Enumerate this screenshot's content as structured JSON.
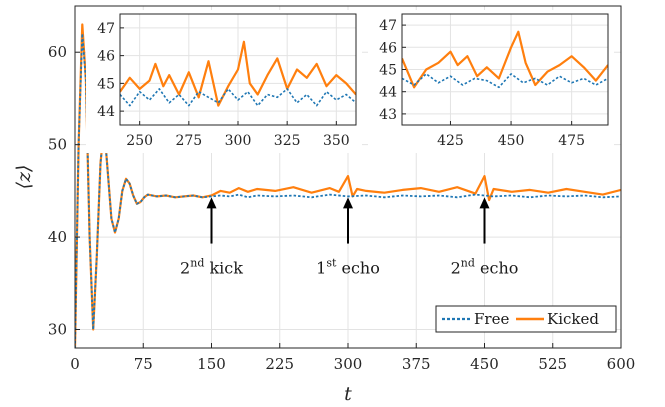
{
  "chart_data": {
    "type": "line",
    "title": "",
    "xlabel": "t",
    "ylabel": "⟨z⟩",
    "xlim": [
      0,
      600
    ],
    "ylim": [
      28,
      65
    ],
    "xticks": [
      0,
      75,
      150,
      225,
      300,
      375,
      450,
      525,
      600
    ],
    "yticks": [
      30,
      40,
      50,
      60
    ],
    "grid": true,
    "legend_position": "bottom-right",
    "series": [
      {
        "name": "Free",
        "color": "#1f77b4",
        "style": "dotted",
        "x": [
          0,
          4,
          8,
          12,
          16,
          20,
          24,
          28,
          32,
          36,
          40,
          44,
          48,
          52,
          56,
          60,
          64,
          68,
          72,
          76,
          80,
          90,
          100,
          110,
          120,
          130,
          140,
          150,
          160,
          170,
          180,
          190,
          200,
          220,
          240,
          260,
          280,
          300,
          320,
          340,
          360,
          380,
          400,
          420,
          440,
          460,
          480,
          500,
          520,
          540,
          560,
          580,
          600
        ],
        "y": [
          28,
          50,
          62,
          57,
          40,
          30,
          38,
          48,
          52,
          47,
          42,
          40.5,
          42,
          45,
          46.3,
          45.8,
          44.5,
          43.6,
          43.8,
          44.3,
          44.6,
          44.4,
          44.5,
          44.3,
          44.4,
          44.5,
          44.3,
          44.4,
          44.5,
          44.4,
          44.6,
          44.3,
          44.5,
          44.4,
          44.5,
          44.3,
          44.6,
          44.4,
          44.5,
          44.3,
          44.5,
          44.4,
          44.5,
          44.3,
          44.6,
          44.4,
          44.5,
          44.3,
          44.5,
          44.4,
          44.5,
          44.3,
          44.4
        ]
      },
      {
        "name": "Kicked",
        "color": "#ff7f0e",
        "style": "solid",
        "x": [
          0,
          4,
          8,
          12,
          16,
          20,
          24,
          28,
          32,
          36,
          40,
          44,
          48,
          52,
          56,
          60,
          64,
          68,
          72,
          76,
          80,
          90,
          100,
          110,
          120,
          130,
          140,
          150,
          160,
          170,
          180,
          190,
          200,
          220,
          240,
          260,
          280,
          290,
          300,
          305,
          310,
          320,
          340,
          360,
          380,
          400,
          420,
          440,
          450,
          455,
          460,
          480,
          500,
          520,
          540,
          560,
          580,
          600
        ],
        "y": [
          28,
          50,
          63,
          57,
          40,
          30,
          38,
          48,
          52,
          47,
          42,
          40.5,
          42,
          45,
          46.3,
          45.8,
          44.5,
          43.6,
          43.8,
          44.3,
          44.6,
          44.4,
          44.5,
          44.3,
          44.4,
          44.5,
          44.3,
          44.5,
          45.0,
          44.8,
          45.3,
          44.9,
          45.2,
          45.0,
          45.4,
          44.8,
          45.3,
          44.9,
          46.6,
          44.4,
          45.2,
          45.0,
          44.8,
          45.1,
          45.3,
          44.9,
          45.4,
          44.7,
          46.6,
          44.0,
          45.2,
          44.9,
          45.1,
          44.8,
          45.2,
          44.9,
          44.6,
          45.1
        ]
      }
    ],
    "annotations": [
      {
        "x": 150,
        "y_tip": 44.3,
        "y_tail": 39.3,
        "prefix": "2",
        "superscript": "nd",
        "suffix": " kick"
      },
      {
        "x": 300,
        "y_tip": 44.3,
        "y_tail": 39.3,
        "prefix": "1",
        "superscript": "st",
        "suffix": " echo"
      },
      {
        "x": 450,
        "y_tip": 44.3,
        "y_tail": 39.3,
        "prefix": "2",
        "superscript": "nd",
        "suffix": " echo"
      }
    ],
    "insets": [
      {
        "xlim": [
          240,
          360
        ],
        "ylim": [
          43.5,
          47.5
        ],
        "xticks": [
          250,
          275,
          300,
          325,
          350
        ],
        "yticks": [
          44,
          45,
          46,
          47
        ],
        "free": {
          "x": [
            240,
            245,
            250,
            255,
            260,
            265,
            270,
            275,
            280,
            285,
            290,
            295,
            300,
            305,
            310,
            315,
            320,
            325,
            330,
            335,
            340,
            345,
            350,
            355,
            360
          ],
          "y": [
            44.6,
            44.2,
            44.7,
            44.4,
            44.8,
            44.3,
            44.6,
            44.2,
            44.7,
            44.5,
            44.3,
            44.8,
            44.4,
            44.7,
            44.2,
            44.6,
            44.5,
            44.8,
            44.3,
            44.6,
            44.2,
            44.7,
            44.4,
            44.6,
            44.3
          ]
        },
        "kicked": {
          "x": [
            240,
            245,
            250,
            255,
            258,
            262,
            265,
            270,
            275,
            280,
            285,
            290,
            295,
            300,
            303,
            306,
            310,
            315,
            320,
            325,
            330,
            335,
            340,
            345,
            350,
            355,
            360
          ],
          "y": [
            44.7,
            45.2,
            44.8,
            45.1,
            45.7,
            44.9,
            45.3,
            44.6,
            45.4,
            44.5,
            45.8,
            44.2,
            44.9,
            45.5,
            46.5,
            45.0,
            44.6,
            45.3,
            45.9,
            44.8,
            45.5,
            45.2,
            45.7,
            44.9,
            45.3,
            45.0,
            44.6
          ]
        }
      },
      {
        "xlim": [
          405,
          490
        ],
        "ylim": [
          42.5,
          47.5
        ],
        "xticks": [
          425,
          450,
          475
        ],
        "yticks": [
          43,
          44,
          45,
          46,
          47
        ],
        "free": {
          "x": [
            405,
            410,
            415,
            420,
            425,
            430,
            435,
            440,
            445,
            450,
            455,
            460,
            465,
            470,
            475,
            480,
            485,
            490
          ],
          "y": [
            44.6,
            44.3,
            44.8,
            44.4,
            44.7,
            44.3,
            44.6,
            44.5,
            44.2,
            44.8,
            44.4,
            44.6,
            44.3,
            44.7,
            44.4,
            44.6,
            44.3,
            44.6
          ]
        },
        "kicked": {
          "x": [
            405,
            410,
            415,
            420,
            425,
            428,
            432,
            436,
            440,
            445,
            450,
            453,
            456,
            460,
            465,
            470,
            475,
            480,
            485,
            490
          ],
          "y": [
            45.5,
            44.2,
            45.0,
            45.3,
            45.8,
            45.2,
            45.6,
            44.7,
            45.1,
            44.6,
            46.0,
            46.7,
            45.3,
            44.3,
            44.9,
            45.2,
            45.6,
            45.1,
            44.5,
            45.2
          ]
        }
      }
    ]
  }
}
